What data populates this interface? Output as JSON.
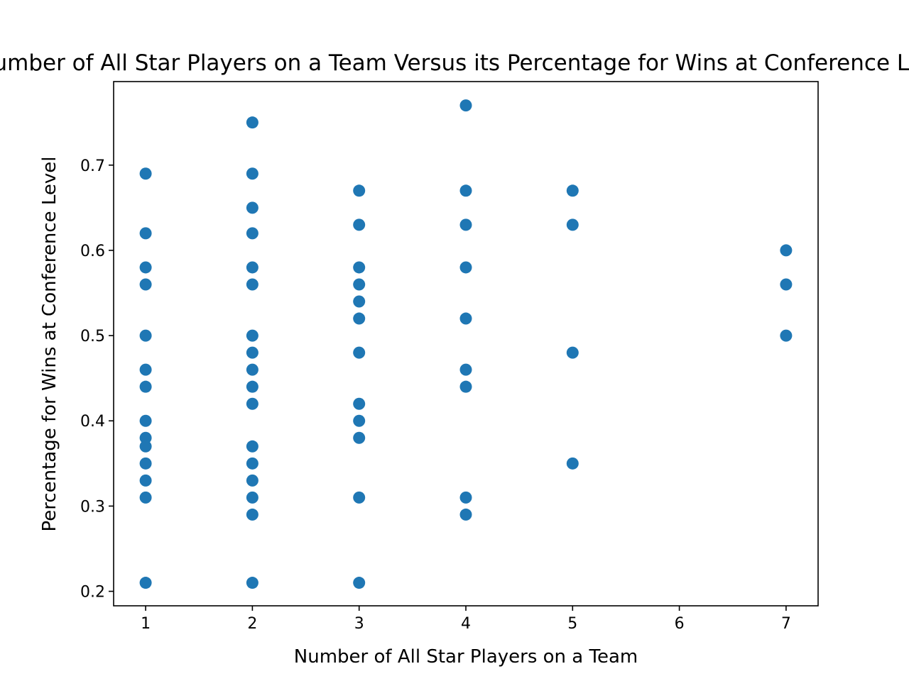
{
  "chart_data": {
    "type": "scatter",
    "title": "Number of All Star Players on a Team Versus its Percentage for Wins at Conference Level",
    "xlabel": "Number of All Star Players on a Team",
    "ylabel": "Percentage for Wins at Conference Level",
    "xlim": [
      0.7,
      7.3
    ],
    "ylim": [
      0.183,
      0.798
    ],
    "xticks": [
      1,
      2,
      3,
      4,
      5,
      6,
      7
    ],
    "yticks": [
      0.2,
      0.3,
      0.4,
      0.5,
      0.6,
      0.7
    ],
    "grid": false,
    "marker_color": "#1f77b4",
    "points": [
      {
        "x": 1,
        "y": 0.69
      },
      {
        "x": 1,
        "y": 0.62
      },
      {
        "x": 1,
        "y": 0.58
      },
      {
        "x": 1,
        "y": 0.56
      },
      {
        "x": 1,
        "y": 0.5
      },
      {
        "x": 1,
        "y": 0.46
      },
      {
        "x": 1,
        "y": 0.44
      },
      {
        "x": 1,
        "y": 0.4
      },
      {
        "x": 1,
        "y": 0.38
      },
      {
        "x": 1,
        "y": 0.37
      },
      {
        "x": 1,
        "y": 0.35
      },
      {
        "x": 1,
        "y": 0.33
      },
      {
        "x": 1,
        "y": 0.31
      },
      {
        "x": 1,
        "y": 0.21
      },
      {
        "x": 2,
        "y": 0.75
      },
      {
        "x": 2,
        "y": 0.69
      },
      {
        "x": 2,
        "y": 0.65
      },
      {
        "x": 2,
        "y": 0.62
      },
      {
        "x": 2,
        "y": 0.58
      },
      {
        "x": 2,
        "y": 0.56
      },
      {
        "x": 2,
        "y": 0.5
      },
      {
        "x": 2,
        "y": 0.48
      },
      {
        "x": 2,
        "y": 0.46
      },
      {
        "x": 2,
        "y": 0.44
      },
      {
        "x": 2,
        "y": 0.42
      },
      {
        "x": 2,
        "y": 0.37
      },
      {
        "x": 2,
        "y": 0.35
      },
      {
        "x": 2,
        "y": 0.33
      },
      {
        "x": 2,
        "y": 0.31
      },
      {
        "x": 2,
        "y": 0.29
      },
      {
        "x": 2,
        "y": 0.21
      },
      {
        "x": 3,
        "y": 0.67
      },
      {
        "x": 3,
        "y": 0.63
      },
      {
        "x": 3,
        "y": 0.58
      },
      {
        "x": 3,
        "y": 0.56
      },
      {
        "x": 3,
        "y": 0.54
      },
      {
        "x": 3,
        "y": 0.52
      },
      {
        "x": 3,
        "y": 0.48
      },
      {
        "x": 3,
        "y": 0.42
      },
      {
        "x": 3,
        "y": 0.4
      },
      {
        "x": 3,
        "y": 0.38
      },
      {
        "x": 3,
        "y": 0.31
      },
      {
        "x": 3,
        "y": 0.21
      },
      {
        "x": 4,
        "y": 0.77
      },
      {
        "x": 4,
        "y": 0.67
      },
      {
        "x": 4,
        "y": 0.63
      },
      {
        "x": 4,
        "y": 0.58
      },
      {
        "x": 4,
        "y": 0.52
      },
      {
        "x": 4,
        "y": 0.46
      },
      {
        "x": 4,
        "y": 0.44
      },
      {
        "x": 4,
        "y": 0.31
      },
      {
        "x": 4,
        "y": 0.29
      },
      {
        "x": 5,
        "y": 0.67
      },
      {
        "x": 5,
        "y": 0.63
      },
      {
        "x": 5,
        "y": 0.48
      },
      {
        "x": 5,
        "y": 0.35
      },
      {
        "x": 7,
        "y": 0.6
      },
      {
        "x": 7,
        "y": 0.56
      },
      {
        "x": 7,
        "y": 0.5
      }
    ]
  }
}
